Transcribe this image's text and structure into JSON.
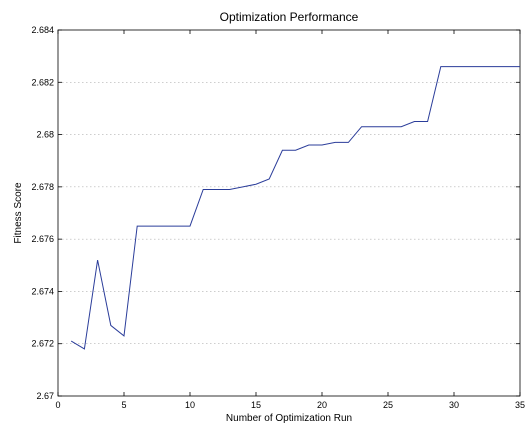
{
  "chart_data": {
    "type": "line",
    "title": "Optimization Performance",
    "xlabel": "Number of Optimization Run",
    "ylabel": "Fitness Score",
    "xlim": [
      0,
      35
    ],
    "ylim": [
      2.67,
      2.684
    ],
    "x_ticks": [
      0,
      5,
      10,
      15,
      20,
      25,
      30,
      35
    ],
    "y_ticks": [
      2.67,
      2.672,
      2.674,
      2.676,
      2.678,
      2.68,
      2.682,
      2.684
    ],
    "x_tick_labels": [
      "0",
      "5",
      "10",
      "15",
      "20",
      "25",
      "30",
      "35"
    ],
    "y_tick_labels": [
      "2.67",
      "2.672",
      "2.674",
      "2.676",
      "2.678",
      "2.68",
      "2.682",
      "2.684"
    ],
    "grid": "horizontal dotted",
    "line_color": "#2b3d9a",
    "series": [
      {
        "x": [
          1,
          2,
          3,
          4,
          5,
          6,
          7,
          8,
          9,
          10,
          11,
          12,
          13,
          14,
          15,
          16,
          17,
          18,
          19,
          20,
          21,
          22,
          23,
          24,
          25,
          26,
          27,
          28,
          29,
          30,
          31,
          32,
          33,
          34,
          35
        ],
        "values": [
          2.6721,
          2.6718,
          2.6752,
          2.6727,
          2.6723,
          2.6765,
          2.6765,
          2.6765,
          2.6765,
          2.6765,
          2.6779,
          2.6779,
          2.6779,
          2.678,
          2.6781,
          2.6783,
          2.6794,
          2.6794,
          2.6796,
          2.6796,
          2.6797,
          2.6797,
          2.6803,
          2.6803,
          2.6803,
          2.6803,
          2.6805,
          2.6805,
          2.6826,
          2.6826,
          2.6826,
          2.6826,
          2.6826,
          2.6826,
          2.6826
        ]
      }
    ]
  }
}
